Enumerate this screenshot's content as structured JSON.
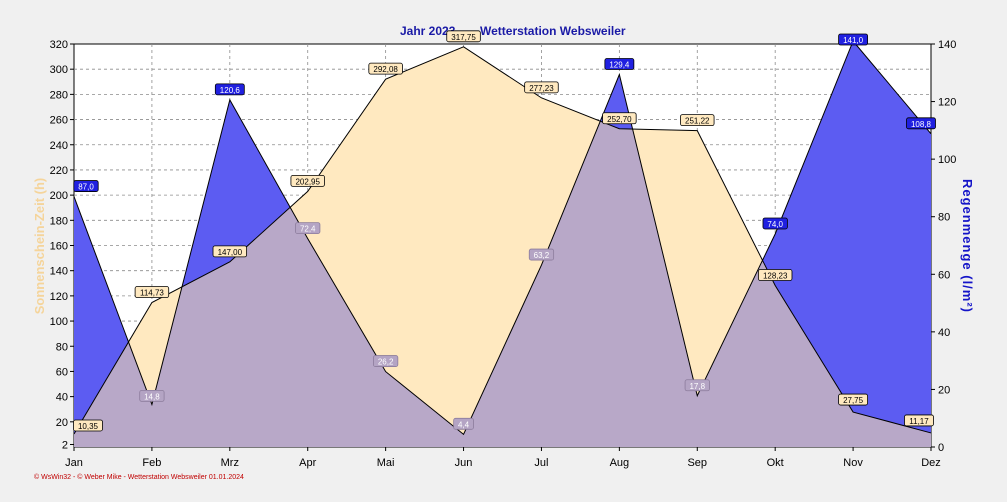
{
  "chart_data": {
    "type": "area",
    "title": "Jahr  2023",
    "subtitle": "Wetterstation Websweiler",
    "categories": [
      "Jan",
      "Feb",
      "Mrz",
      "Apr",
      "Mai",
      "Jun",
      "Jul",
      "Aug",
      "Sep",
      "Okt",
      "Nov",
      "Dez"
    ],
    "ylabel_left": "Sonnenschein-Zeit  (h)",
    "ylabel_right": "Regenmenge  (l/m²)",
    "ylim_left": [
      0,
      320
    ],
    "ylim_right": [
      0,
      140
    ],
    "yticks_left": [
      2,
      20,
      40,
      60,
      80,
      100,
      120,
      140,
      160,
      180,
      200,
      220,
      240,
      260,
      280,
      300,
      320
    ],
    "yticks_right": [
      0,
      20,
      40,
      60,
      80,
      100,
      120,
      140
    ],
    "grid": true,
    "series": [
      {
        "name": "Sonnenschein-Zeit",
        "axis": "left",
        "color": "#ffe9c0",
        "values": [
          10.35,
          114.73,
          147.0,
          202.95,
          292.08,
          317.75,
          277.23,
          252.7,
          251.22,
          128.23,
          27.75,
          11.17
        ],
        "labels": [
          "10,35",
          "114,73",
          "147,00",
          "202,95",
          "292,08",
          "317,75",
          "277,23",
          "252,70",
          "251,22",
          "128,23",
          "27,75",
          "11,17"
        ]
      },
      {
        "name": "Regenmenge",
        "axis": "right",
        "color": "#5c5cf2",
        "values": [
          87.0,
          14.8,
          120.6,
          72.4,
          26.2,
          4.4,
          63.2,
          129.4,
          17.8,
          74.0,
          141.0,
          108.8
        ],
        "labels": [
          "87,0",
          "14,8",
          "120,6",
          "72,4",
          "26,2",
          "4,4",
          "63,2",
          "129,4",
          "17,8",
          "74,0",
          "141,0",
          "108,8"
        ]
      }
    ],
    "overlap_color": "#b8a8c8",
    "footer": "© WsWin32  -  © Weber Mike  -  Wetterstation Websweiler   01.01.2024"
  }
}
